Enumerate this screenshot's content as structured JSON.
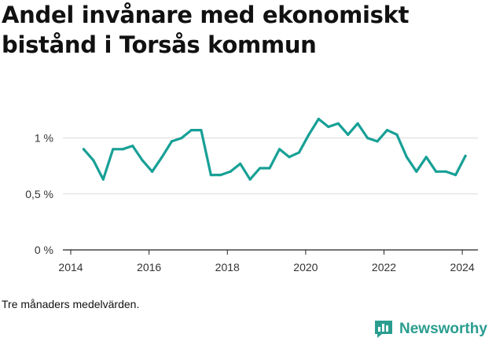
{
  "title": "Andel invånare med ekonomiskt bistånd i Torsås kommun",
  "footnote": "Tre månaders medelvärden.",
  "brand": {
    "name": "Newsworthy",
    "icon": "bar-chart-chat-icon",
    "color": "#2a9d8f"
  },
  "chart_data": {
    "type": "line",
    "title": "Andel invånare med ekonomiskt bistånd i Torsås kommun",
    "xlabel": "",
    "ylabel": "",
    "xlim": [
      2014,
      2024.6
    ],
    "ylim": [
      0,
      1.25
    ],
    "x_ticks": [
      2014,
      2016,
      2018,
      2020,
      2022,
      2024
    ],
    "x_tick_labels": [
      "2014",
      "2016",
      "2018",
      "2020",
      "2022",
      "2024"
    ],
    "y_ticks": [
      0,
      0.5,
      1
    ],
    "y_tick_labels": [
      "0 %",
      "0,5 %",
      "1 %"
    ],
    "grid": "horizontal",
    "line_color": "#17a096",
    "series": [
      {
        "name": "",
        "x": [
          2014.33,
          2014.58,
          2014.83,
          2015.08,
          2015.33,
          2015.58,
          2015.83,
          2016.08,
          2016.33,
          2016.58,
          2016.83,
          2017.08,
          2017.33,
          2017.58,
          2017.83,
          2018.08,
          2018.33,
          2018.58,
          2018.83,
          2019.08,
          2019.33,
          2019.58,
          2019.83,
          2020.08,
          2020.33,
          2020.58,
          2020.83,
          2021.08,
          2021.33,
          2021.58,
          2021.83,
          2022.08,
          2022.33,
          2022.58,
          2022.83,
          2023.08,
          2023.33,
          2023.58,
          2023.83,
          2024.08
        ],
        "values": [
          0.9,
          0.8,
          0.63,
          0.9,
          0.9,
          0.93,
          0.8,
          0.7,
          0.83,
          0.97,
          1.0,
          1.07,
          1.07,
          0.67,
          0.67,
          0.7,
          0.77,
          0.63,
          0.73,
          0.73,
          0.9,
          0.83,
          0.87,
          1.03,
          1.17,
          1.1,
          1.13,
          1.03,
          1.13,
          1.0,
          0.97,
          1.07,
          1.03,
          0.83,
          0.7,
          0.83,
          0.7,
          0.7,
          0.67,
          0.84
        ]
      }
    ]
  }
}
